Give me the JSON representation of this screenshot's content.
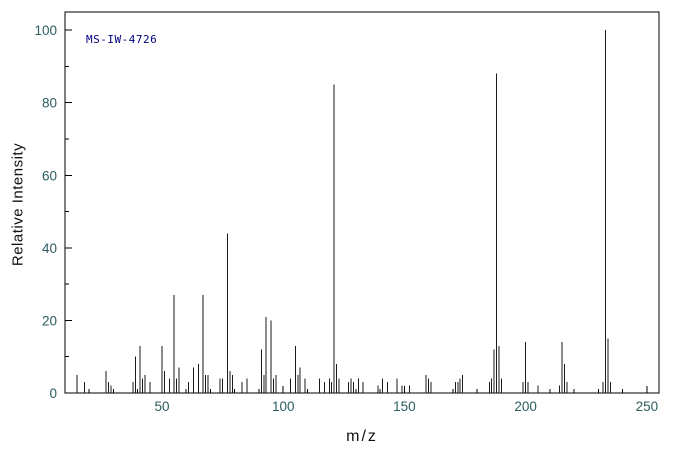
{
  "chart_data": {
    "type": "bar",
    "subtype": "mass-spectrum",
    "title": "",
    "annotation": "MS-IW-4726",
    "xlabel": "m/z",
    "ylabel": "Relative Intensity",
    "xlim": [
      10,
      255
    ],
    "ylim": [
      0,
      105
    ],
    "x_major_ticks": [
      50,
      100,
      150,
      200,
      250
    ],
    "x_minor_step": 10,
    "y_major_ticks": [
      0,
      20,
      40,
      60,
      80,
      100
    ],
    "y_minor_step": 10,
    "grid": false,
    "legend": false,
    "border_color": "#000000",
    "peak_color": "#1a1a1a",
    "tick_label_color": "#2d5d5d",
    "axis_label_color": "#111111",
    "annotation_color": "#000080",
    "peaks": [
      [
        15,
        5
      ],
      [
        18,
        3
      ],
      [
        27,
        6
      ],
      [
        28,
        3
      ],
      [
        29,
        2
      ],
      [
        38,
        3
      ],
      [
        39,
        10
      ],
      [
        41,
        13
      ],
      [
        42,
        4
      ],
      [
        43,
        5
      ],
      [
        45,
        3
      ],
      [
        50,
        13
      ],
      [
        51,
        6
      ],
      [
        53,
        4
      ],
      [
        55,
        27
      ],
      [
        56,
        4
      ],
      [
        57,
        7
      ],
      [
        61,
        3
      ],
      [
        63,
        7
      ],
      [
        65,
        8
      ],
      [
        67,
        27
      ],
      [
        68,
        5
      ],
      [
        69,
        5
      ],
      [
        74,
        4
      ],
      [
        75,
        4
      ],
      [
        77,
        44
      ],
      [
        78,
        6
      ],
      [
        79,
        5
      ],
      [
        83,
        3
      ],
      [
        85,
        4
      ],
      [
        91,
        12
      ],
      [
        92,
        5
      ],
      [
        93,
        21
      ],
      [
        95,
        20
      ],
      [
        96,
        4
      ],
      [
        97,
        5
      ],
      [
        103,
        4
      ],
      [
        105,
        13
      ],
      [
        106,
        5
      ],
      [
        107,
        7
      ],
      [
        109,
        4
      ],
      [
        115,
        4
      ],
      [
        117,
        3
      ],
      [
        119,
        4
      ],
      [
        120,
        3
      ],
      [
        121,
        85
      ],
      [
        122,
        8
      ],
      [
        123,
        4
      ],
      [
        127,
        3
      ],
      [
        128,
        4
      ],
      [
        129,
        3
      ],
      [
        131,
        4
      ],
      [
        133,
        3
      ],
      [
        139,
        2
      ],
      [
        141,
        4
      ],
      [
        143,
        3
      ],
      [
        147,
        4
      ],
      [
        149,
        2
      ],
      [
        152,
        2
      ],
      [
        159,
        5
      ],
      [
        160,
        4
      ],
      [
        161,
        3
      ],
      [
        171,
        3
      ],
      [
        172,
        3
      ],
      [
        173,
        4
      ],
      [
        174,
        5
      ],
      [
        185,
        3
      ],
      [
        186,
        4
      ],
      [
        187,
        12
      ],
      [
        188,
        88
      ],
      [
        189,
        13
      ],
      [
        190,
        4
      ],
      [
        199,
        3
      ],
      [
        200,
        14
      ],
      [
        201,
        3
      ],
      [
        205,
        2
      ],
      [
        214,
        2
      ],
      [
        215,
        14
      ],
      [
        216,
        8
      ],
      [
        217,
        3
      ],
      [
        232,
        3
      ],
      [
        233,
        100
      ],
      [
        234,
        15
      ],
      [
        235,
        3
      ]
    ]
  }
}
